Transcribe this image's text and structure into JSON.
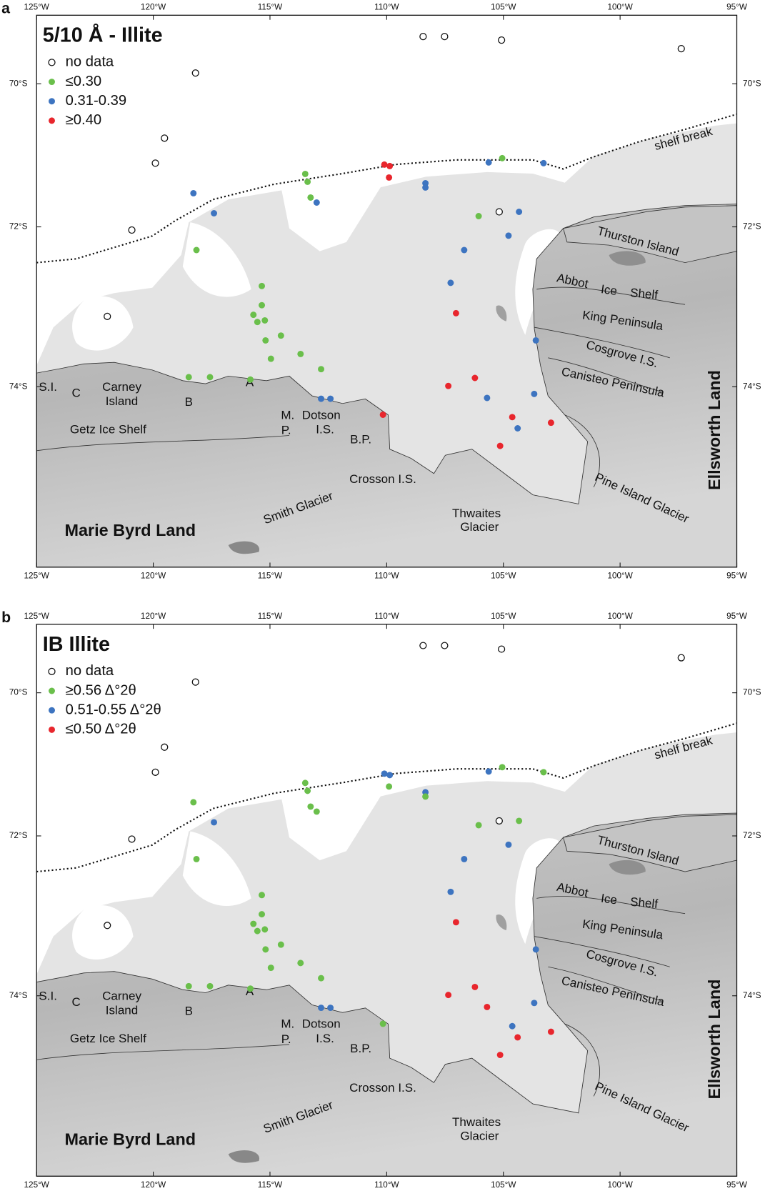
{
  "lon_ticks": [
    {
      "value": 125,
      "label": "125°W"
    },
    {
      "value": 120,
      "label": "120°W"
    },
    {
      "value": 115,
      "label": "115°W"
    },
    {
      "value": 110,
      "label": "110°W"
    },
    {
      "value": 105,
      "label": "105°W"
    },
    {
      "value": 100,
      "label": "100°W"
    },
    {
      "value": 95,
      "label": "95°W"
    }
  ],
  "lat_ticks": [
    {
      "value": 70,
      "label": "70°S"
    },
    {
      "value": 72,
      "label": "72°S"
    },
    {
      "value": 74,
      "label": "74°S"
    }
  ],
  "panels": [
    {
      "letter": "a",
      "title": "5/10 Å - Illite",
      "legend": [
        {
          "label": "no data",
          "color": null
        },
        {
          "label": "≤0.30",
          "color": "#6abf4b"
        },
        {
          "label": "0.31-0.39",
          "color": "#3d74c0"
        },
        {
          "label": "≥0.40",
          "color": "#e8262d"
        }
      ]
    },
    {
      "letter": "b",
      "title": "IB  Illite",
      "legend": [
        {
          "label": "no data",
          "color": null
        },
        {
          "label": "≥0.56 Δ°2θ",
          "color": "#6abf4b"
        },
        {
          "label": "0.51-0.55 Δ°2θ",
          "color": "#3d74c0"
        },
        {
          "label": "≤0.50 Δ°2θ",
          "color": "#e8262d"
        }
      ]
    }
  ],
  "place_labels": [
    "shelf break",
    "Thurston Island",
    "Abbot",
    "Ice",
    "Shelf",
    "King Peninsula",
    "Cosgrove I.S.",
    "Canisteo Peninsula",
    "Ellsworth Land",
    "Pine Island Glacier",
    "Thwaites",
    "Glacier",
    "Crosson I.S.",
    "Smith Glacier",
    "Marie Byrd Land",
    "B.P.",
    "Dotson",
    "I.S.",
    "M.",
    "P.",
    "A",
    "B",
    "Carney",
    "Island",
    "S.I.",
    "C",
    "Getz Ice Shelf"
  ],
  "stations": [
    {
      "lon": 108.44,
      "lat": 69.34,
      "class": [
        0,
        0
      ]
    },
    {
      "lon": 107.52,
      "lat": 69.34,
      "class": [
        0,
        0
      ]
    },
    {
      "lon": 105.08,
      "lat": 69.39,
      "class": [
        0,
        0
      ]
    },
    {
      "lon": 97.38,
      "lat": 69.51,
      "class": [
        0,
        0
      ]
    },
    {
      "lon": 118.19,
      "lat": 69.85,
      "class": [
        0,
        0
      ]
    },
    {
      "lon": 119.52,
      "lat": 70.76,
      "class": [
        0,
        0
      ]
    },
    {
      "lon": 119.91,
      "lat": 71.11,
      "class": [
        0,
        0
      ]
    },
    {
      "lon": 120.92,
      "lat": 72.04,
      "class": [
        0,
        0
      ]
    },
    {
      "lon": 121.97,
      "lat": 73.12,
      "class": [
        0,
        0
      ]
    },
    {
      "lon": 105.18,
      "lat": 71.79,
      "class": [
        0,
        0
      ]
    },
    {
      "lon": 113.49,
      "lat": 71.26,
      "class": [
        1,
        1
      ]
    },
    {
      "lon": 113.39,
      "lat": 71.37,
      "class": [
        1,
        1
      ]
    },
    {
      "lon": 113.26,
      "lat": 71.59,
      "class": [
        1,
        1
      ]
    },
    {
      "lon": 113.0,
      "lat": 71.66,
      "class": [
        2,
        1
      ]
    },
    {
      "lon": 118.28,
      "lat": 71.53,
      "class": [
        2,
        1
      ]
    },
    {
      "lon": 117.4,
      "lat": 71.81,
      "class": [
        2,
        2
      ]
    },
    {
      "lon": 118.15,
      "lat": 72.29,
      "class": [
        1,
        1
      ]
    },
    {
      "lon": 115.35,
      "lat": 72.74,
      "class": [
        1,
        1
      ]
    },
    {
      "lon": 115.35,
      "lat": 72.98,
      "class": [
        1,
        1
      ]
    },
    {
      "lon": 115.71,
      "lat": 73.1,
      "class": [
        1,
        1
      ]
    },
    {
      "lon": 115.54,
      "lat": 73.19,
      "class": [
        1,
        1
      ]
    },
    {
      "lon": 115.22,
      "lat": 73.17,
      "class": [
        1,
        1
      ]
    },
    {
      "lon": 114.53,
      "lat": 73.36,
      "class": [
        1,
        1
      ]
    },
    {
      "lon": 115.19,
      "lat": 73.42,
      "class": [
        1,
        1
      ]
    },
    {
      "lon": 114.96,
      "lat": 73.65,
      "class": [
        1,
        1
      ]
    },
    {
      "lon": 113.69,
      "lat": 73.59,
      "class": [
        1,
        1
      ]
    },
    {
      "lon": 112.81,
      "lat": 73.78,
      "class": [
        1,
        1
      ]
    },
    {
      "lon": 118.48,
      "lat": 73.88,
      "class": [
        1,
        1
      ]
    },
    {
      "lon": 117.57,
      "lat": 73.88,
      "class": [
        1,
        1
      ]
    },
    {
      "lon": 115.84,
      "lat": 73.91,
      "class": [
        1,
        1
      ]
    },
    {
      "lon": 112.81,
      "lat": 74.15,
      "class": [
        2,
        2
      ]
    },
    {
      "lon": 112.41,
      "lat": 74.15,
      "class": [
        2,
        2
      ]
    },
    {
      "lon": 110.1,
      "lat": 71.13,
      "class": [
        3,
        2
      ]
    },
    {
      "lon": 109.87,
      "lat": 71.15,
      "class": [
        3,
        2
      ]
    },
    {
      "lon": 109.9,
      "lat": 71.31,
      "class": [
        3,
        1
      ]
    },
    {
      "lon": 108.34,
      "lat": 71.39,
      "class": [
        2,
        2
      ]
    },
    {
      "lon": 108.34,
      "lat": 71.45,
      "class": [
        2,
        1
      ]
    },
    {
      "lon": 105.63,
      "lat": 71.1,
      "class": [
        2,
        2
      ]
    },
    {
      "lon": 105.05,
      "lat": 71.04,
      "class": [
        1,
        1
      ]
    },
    {
      "lon": 103.28,
      "lat": 71.11,
      "class": [
        2,
        1
      ]
    },
    {
      "lon": 106.06,
      "lat": 71.85,
      "class": [
        1,
        1
      ]
    },
    {
      "lon": 104.33,
      "lat": 71.79,
      "class": [
        2,
        1
      ]
    },
    {
      "lon": 104.78,
      "lat": 72.11,
      "class": [
        2,
        2
      ]
    },
    {
      "lon": 106.68,
      "lat": 72.29,
      "class": [
        2,
        2
      ]
    },
    {
      "lon": 107.26,
      "lat": 72.7,
      "class": [
        2,
        2
      ]
    },
    {
      "lon": 107.03,
      "lat": 73.08,
      "class": [
        3,
        3
      ]
    },
    {
      "lon": 103.61,
      "lat": 73.42,
      "class": [
        2,
        2
      ]
    },
    {
      "lon": 106.22,
      "lat": 73.89,
      "class": [
        3,
        3
      ]
    },
    {
      "lon": 107.36,
      "lat": 73.99,
      "class": [
        3,
        3
      ]
    },
    {
      "lon": 105.7,
      "lat": 74.14,
      "class": [
        2,
        3
      ]
    },
    {
      "lon": 103.68,
      "lat": 74.09,
      "class": [
        2,
        2
      ]
    },
    {
      "lon": 104.62,
      "lat": 74.38,
      "class": [
        3,
        2
      ]
    },
    {
      "lon": 104.39,
      "lat": 74.52,
      "class": [
        2,
        3
      ]
    },
    {
      "lon": 102.96,
      "lat": 74.45,
      "class": [
        3,
        3
      ]
    },
    {
      "lon": 105.14,
      "lat": 74.74,
      "class": [
        3,
        3
      ]
    },
    {
      "lon": 110.16,
      "lat": 74.35,
      "class": [
        3,
        1
      ]
    }
  ]
}
